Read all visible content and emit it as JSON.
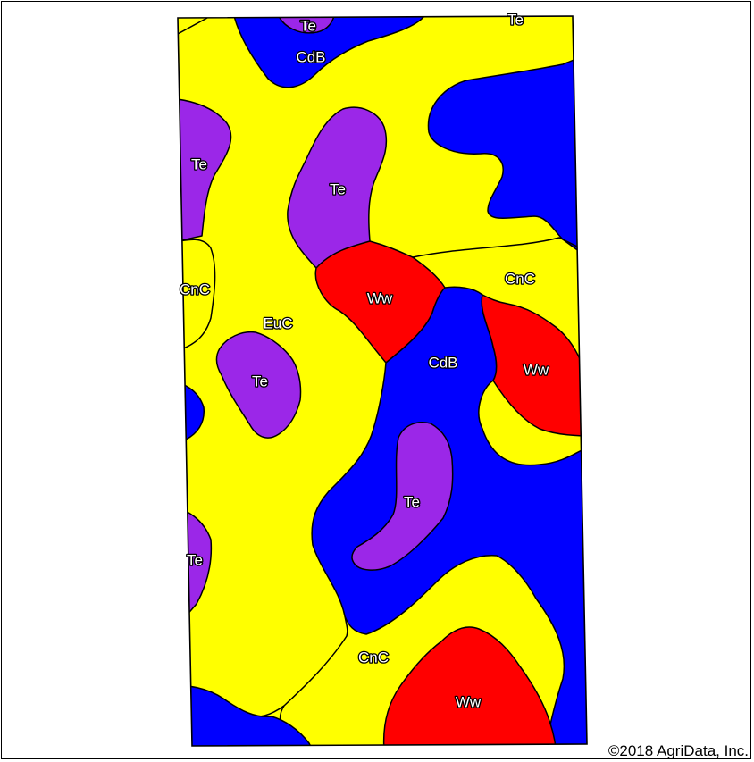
{
  "map": {
    "colors": {
      "EuC": "#ffff00",
      "CnC": "#ffff00",
      "CdB": "#0000ff",
      "Te": "#9b27e8",
      "Ww": "#ff0000",
      "border": "#000000"
    },
    "soil_labels": [
      {
        "symbol": "Te",
        "unit": "Te"
      },
      {
        "symbol": "Te",
        "unit": "Te"
      },
      {
        "symbol": "CdB",
        "unit": "CdB"
      },
      {
        "symbol": "Te",
        "unit": "Te"
      },
      {
        "symbol": "Te",
        "unit": "Te"
      },
      {
        "symbol": "CnC",
        "unit": "CnC"
      },
      {
        "symbol": "Ww",
        "unit": "Ww"
      },
      {
        "symbol": "CnC",
        "unit": "CnC"
      },
      {
        "symbol": "EuC",
        "unit": "EuC"
      },
      {
        "symbol": "CdB",
        "unit": "CdB"
      },
      {
        "symbol": "Ww",
        "unit": "Ww"
      },
      {
        "symbol": "Te",
        "unit": "Te"
      },
      {
        "symbol": "Te",
        "unit": "Te"
      },
      {
        "symbol": "Te",
        "unit": "Te"
      },
      {
        "symbol": "CnC",
        "unit": "CnC"
      },
      {
        "symbol": "Ww",
        "unit": "Ww"
      }
    ]
  },
  "copyright": "©2018 AgriData, Inc."
}
